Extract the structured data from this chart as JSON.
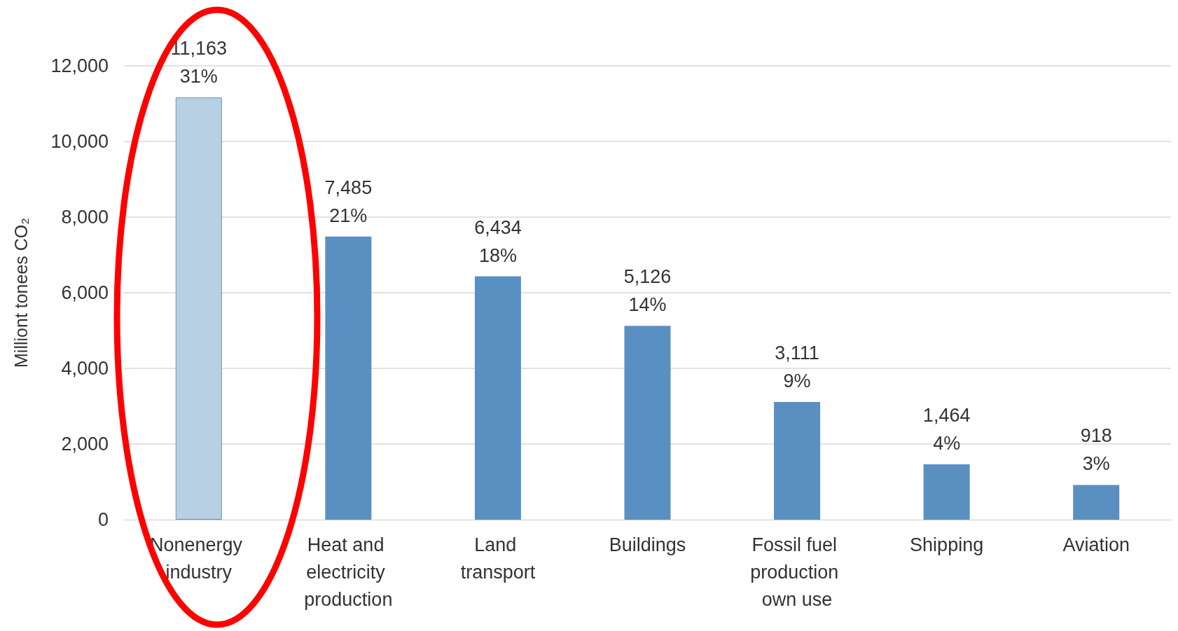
{
  "chart_data": {
    "type": "bar",
    "ylabel": "Milliont tonees CO₂",
    "categories": [
      "Nonenergy industry",
      "Heat and electricity production",
      "Land transport",
      "Buildings",
      "Fossil fuel production own use",
      "Shipping",
      "Aviation"
    ],
    "values": [
      11163,
      7485,
      6434,
      5126,
      3111,
      1464,
      918
    ],
    "colors": [
      "#b7d0e3",
      "#5a8fc2",
      "#5a8fc2",
      "#5a8fc2",
      "#5a8fc2",
      "#5a8fc2",
      "#5a8fc2"
    ],
    "value_labels": [
      "11,163\n31%",
      "7,485\n21%",
      "6,434\n18%",
      "5,126\n14%",
      "3,111\n9%",
      "1,464\n4%",
      "918\n3%"
    ],
    "ylim": [
      0,
      12000
    ],
    "yticks": [
      0,
      {
        "value": 2000,
        "label": "2,000"
      },
      {
        "value": 4000,
        "label": "4,000"
      },
      {
        "value": 6000,
        "label": "6,000"
      },
      {
        "value": 8000,
        "label": "8,000"
      },
      {
        "value": 10000,
        "label": "10,000"
      },
      {
        "value": 12000,
        "label": "12,000"
      }
    ],
    "grid": "y"
  }
}
